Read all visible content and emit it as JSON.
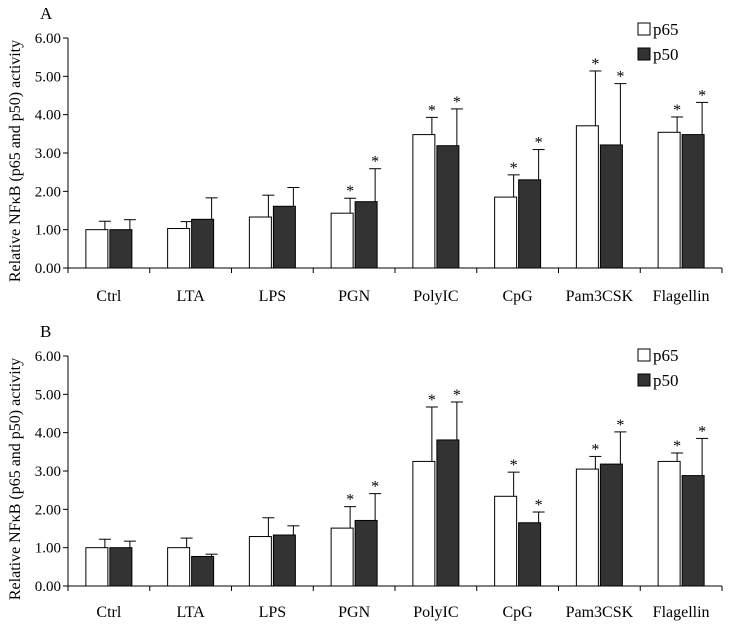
{
  "chart_data": [
    {
      "type": "bar",
      "panel_label": "A",
      "title": "",
      "xlabel": "",
      "ylabel": "Relative NFκB (p65 and p50) activity",
      "ylim": [
        0,
        6
      ],
      "yticks": [
        "0.00",
        "1.00",
        "2.00",
        "3.00",
        "4.00",
        "5.00",
        "6.00"
      ],
      "legend_position": "top-right",
      "grid": false,
      "categories": [
        "Ctrl",
        "LTA",
        "LPS",
        "PGN",
        "PolyIC",
        "CpG",
        "Pam3CSK",
        "Flagellin"
      ],
      "series": [
        {
          "name": "p65",
          "color": "#ffffff",
          "values": [
            1.0,
            1.03,
            1.33,
            1.43,
            3.48,
            1.85,
            3.71,
            3.54
          ],
          "errors": [
            0.22,
            0.18,
            0.57,
            0.39,
            0.45,
            0.58,
            1.43,
            0.4
          ],
          "significant": [
            false,
            false,
            false,
            true,
            true,
            true,
            true,
            true
          ]
        },
        {
          "name": "p50",
          "color": "#333333",
          "values": [
            1.0,
            1.27,
            1.61,
            1.73,
            3.19,
            2.3,
            3.21,
            3.48
          ],
          "errors": [
            0.26,
            0.56,
            0.49,
            0.86,
            0.96,
            0.79,
            1.6,
            0.84
          ],
          "significant": [
            false,
            false,
            false,
            true,
            true,
            true,
            true,
            true
          ]
        }
      ],
      "annotation_symbol": "*"
    },
    {
      "type": "bar",
      "panel_label": "B",
      "title": "",
      "xlabel": "",
      "ylabel": "Relative NFκB (p65 and p50) activity",
      "ylim": [
        0,
        6
      ],
      "yticks": [
        "0.00",
        "1.00",
        "2.00",
        "3.00",
        "4.00",
        "5.00",
        "6.00"
      ],
      "legend_position": "top-right",
      "grid": false,
      "categories": [
        "Ctrl",
        "LTA",
        "LPS",
        "PGN",
        "PolyIC",
        "CpG",
        "Pam3CSK",
        "Flagellin"
      ],
      "series": [
        {
          "name": "p65",
          "color": "#ffffff",
          "values": [
            1.0,
            1.0,
            1.29,
            1.51,
            3.25,
            2.34,
            3.05,
            3.25
          ],
          "errors": [
            0.22,
            0.25,
            0.49,
            0.56,
            1.42,
            0.63,
            0.33,
            0.22
          ],
          "significant": [
            false,
            false,
            false,
            true,
            true,
            true,
            true,
            true
          ]
        },
        {
          "name": "p50",
          "color": "#333333",
          "values": [
            1.0,
            0.77,
            1.33,
            1.71,
            3.81,
            1.65,
            3.18,
            2.88
          ],
          "errors": [
            0.17,
            0.06,
            0.24,
            0.7,
            0.99,
            0.28,
            0.84,
            0.97
          ],
          "significant": [
            false,
            false,
            false,
            true,
            true,
            true,
            true,
            true
          ]
        }
      ],
      "annotation_symbol": "*"
    }
  ]
}
